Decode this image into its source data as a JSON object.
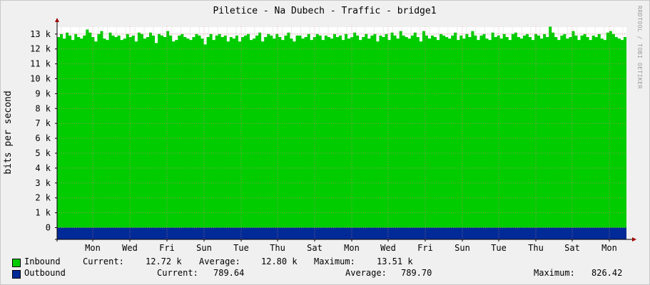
{
  "chart_data": {
    "type": "area",
    "title": "Piletice - Na Dubech - Traffic - bridge1",
    "ylabel": "bits per second",
    "watermark": "RRDTOOL / TOBI OETIKER",
    "y_ticks": [
      "0",
      "1 k",
      "2 k",
      "3 k",
      "4 k",
      "5 k",
      "6 k",
      "7 k",
      "8 k",
      "9 k",
      "10 k",
      "11 k",
      "12 k",
      "13 k"
    ],
    "y_range_k": [
      -0.9,
      13.6
    ],
    "x_ticks": [
      "Mon",
      "Wed",
      "Fri",
      "Sun",
      "Tue",
      "Thu",
      "Sat",
      "Mon",
      "Wed",
      "Fri",
      "Sun",
      "Tue",
      "Thu",
      "Sat",
      "Mon"
    ],
    "grid": true,
    "series": [
      {
        "name": "Inbound",
        "color": "#00cc00",
        "values_k": [
          12.8,
          13.0,
          12.7,
          13.1,
          12.9,
          12.6,
          13.0,
          12.8,
          12.7,
          12.9,
          13.3,
          13.1,
          12.8,
          12.5,
          13.0,
          13.2,
          12.7,
          12.6,
          13.1,
          12.9,
          12.8,
          12.9,
          12.6,
          12.7,
          13.0,
          12.8,
          12.9,
          12.5,
          13.1,
          13.0,
          12.7,
          12.8,
          13.1,
          12.9,
          12.4,
          13.0,
          12.9,
          12.8,
          13.2,
          12.9,
          12.5,
          12.6,
          12.9,
          13.0,
          12.8,
          12.7,
          12.6,
          12.8,
          13.0,
          12.9,
          12.7,
          12.3,
          12.8,
          13.0,
          12.6,
          12.9,
          13.0,
          12.8,
          12.9,
          12.5,
          12.8,
          12.7,
          12.9,
          12.5,
          12.8,
          12.9,
          13.0,
          12.6,
          12.7,
          12.9,
          13.1,
          12.5,
          12.8,
          13.0,
          12.9,
          12.7,
          13.0,
          12.8,
          12.6,
          12.9,
          13.1,
          12.7,
          12.5,
          12.9,
          12.9,
          12.7,
          12.8,
          13.0,
          12.6,
          12.8,
          13.0,
          12.9,
          12.6,
          12.9,
          12.8,
          12.7,
          13.0,
          12.8,
          12.9,
          12.6,
          13.0,
          12.7,
          12.8,
          13.1,
          12.9,
          12.6,
          12.8,
          13.0,
          12.7,
          12.9,
          13.0,
          12.5,
          12.9,
          12.8,
          13.0,
          12.6,
          13.1,
          12.9,
          12.7,
          13.2,
          12.9,
          12.8,
          12.7,
          12.9,
          13.1,
          12.8,
          12.5,
          13.2,
          12.9,
          12.7,
          12.9,
          12.8,
          12.6,
          13.0,
          12.9,
          12.8,
          12.7,
          12.9,
          13.1,
          12.6,
          12.9,
          12.7,
          13.0,
          12.8,
          13.2,
          12.9,
          12.6,
          12.9,
          13.0,
          12.7,
          12.6,
          13.1,
          12.8,
          12.9,
          12.7,
          13.0,
          12.8,
          12.6,
          13.0,
          13.1,
          12.8,
          12.7,
          12.9,
          13.0,
          12.8,
          12.6,
          13.0,
          12.9,
          12.7,
          13.0,
          12.8,
          13.5,
          13.1,
          12.8,
          12.6,
          12.9,
          13.0,
          12.7,
          12.8,
          13.2,
          12.9,
          12.6,
          12.9,
          13.0,
          12.8,
          12.6,
          12.9,
          12.8,
          13.0,
          12.7,
          12.6,
          13.1,
          13.2,
          13.0,
          12.8,
          12.7,
          12.6,
          12.8
        ],
        "current": "12.72 k",
        "average": "12.80 k",
        "maximum": "13.51 k"
      },
      {
        "name": "Outbound",
        "color": "#002a97",
        "values_k": [
          0.79
        ],
        "current": "789.64",
        "average": "789.70",
        "maximum": "826.42"
      }
    ]
  },
  "legend": {
    "current_label": "Current:",
    "average_label": "Average:",
    "maximum_label": "Maximum:"
  }
}
